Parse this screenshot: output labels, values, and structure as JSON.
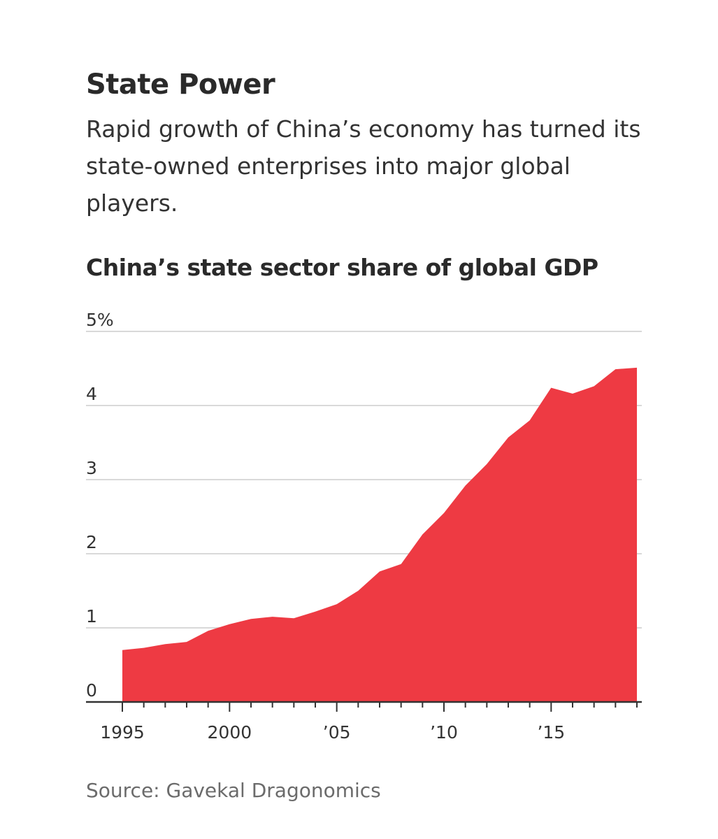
{
  "headline": "State Power",
  "dek": "Rapid growth of China’s economy has turned its state-owned enterprises into major global players.",
  "source": "Source: Gavekal Dragonomics",
  "colors": {
    "area_fill": "#ee3a43",
    "gridline": "#d9d9d9",
    "axis": "#333333"
  },
  "chart_data": {
    "type": "area",
    "title": "China’s state sector share of global GDP",
    "xlabel": "",
    "ylabel": "",
    "ylim": [
      0,
      5
    ],
    "xlim": [
      1995,
      2019
    ],
    "y_ticks": [
      {
        "value": 0,
        "label": "0"
      },
      {
        "value": 1,
        "label": "1"
      },
      {
        "value": 2,
        "label": "2"
      },
      {
        "value": 3,
        "label": "3"
      },
      {
        "value": 4,
        "label": "4"
      },
      {
        "value": 5,
        "label": "5%"
      }
    ],
    "x_ticks": [
      {
        "value": 1995,
        "label": "1995"
      },
      {
        "value": 2000,
        "label": "2000"
      },
      {
        "value": 2005,
        "label": "’05"
      },
      {
        "value": 2010,
        "label": "’10"
      },
      {
        "value": 2015,
        "label": "’15"
      }
    ],
    "x_minor_ticks": [
      1996,
      1997,
      1998,
      1999,
      2001,
      2002,
      2003,
      2004,
      2006,
      2007,
      2008,
      2009,
      2011,
      2012,
      2013,
      2014,
      2016,
      2017,
      2018,
      2019
    ],
    "grid": true,
    "legend": "none",
    "x": [
      1995,
      1996,
      1997,
      1998,
      1999,
      2000,
      2001,
      2002,
      2003,
      2004,
      2005,
      2006,
      2007,
      2008,
      2009,
      2010,
      2011,
      2012,
      2013,
      2014,
      2015,
      2016,
      2017,
      2018,
      2019
    ],
    "values": [
      0.7,
      0.73,
      0.78,
      0.81,
      0.96,
      1.05,
      1.12,
      1.15,
      1.13,
      1.22,
      1.32,
      1.5,
      1.76,
      1.86,
      2.26,
      2.55,
      2.92,
      3.21,
      3.57,
      3.8,
      4.24,
      4.16,
      4.26,
      4.49,
      4.51
    ]
  }
}
